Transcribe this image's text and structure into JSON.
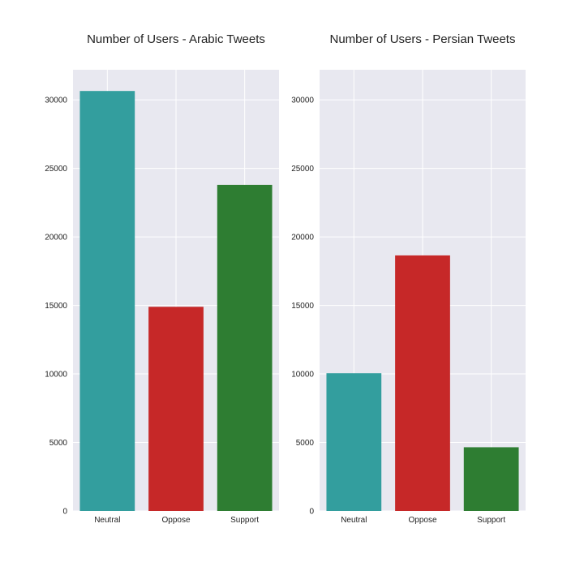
{
  "chart_data": [
    {
      "type": "bar",
      "title": "Number of Users - Arabic Tweets",
      "categories": [
        "Neutral",
        "Oppose",
        "Support"
      ],
      "values": [
        30650,
        14900,
        23800
      ],
      "colors": [
        "#339e9e",
        "#c62828",
        "#2e7d32"
      ],
      "ylim": [
        0,
        32200
      ],
      "yticks": [
        0,
        5000,
        10000,
        15000,
        20000,
        25000,
        30000
      ],
      "grid": true
    },
    {
      "type": "bar",
      "title": "Number of Users - Persian Tweets",
      "categories": [
        "Neutral",
        "Oppose",
        "Support"
      ],
      "values": [
        10050,
        18650,
        4650
      ],
      "colors": [
        "#339e9e",
        "#c62828",
        "#2e7d32"
      ],
      "ylim": [
        0,
        32200
      ],
      "yticks": [
        0,
        5000,
        10000,
        15000,
        20000,
        25000,
        30000
      ],
      "grid": true
    }
  ],
  "style": {
    "plot_background": "#e8e8f0",
    "grid_color": "#ffffff"
  }
}
